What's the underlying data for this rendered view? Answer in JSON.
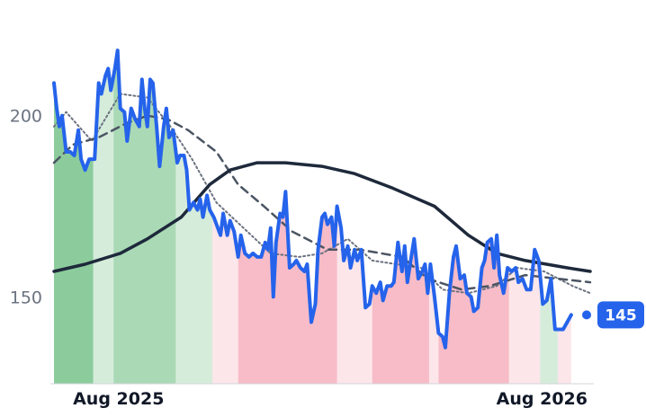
{
  "chart_data": {
    "type": "line",
    "title": "",
    "xlabel": "",
    "ylabel": "",
    "x_range": [
      "2025-07-18",
      "2026-08-18"
    ],
    "ylim": [
      126,
      222
    ],
    "y_ticks": [
      150,
      200
    ],
    "x_ticks": [
      {
        "date": "2025-08-01",
        "label": "Aug 2025"
      },
      {
        "date": "2026-08-01",
        "label": "Aug 2026"
      }
    ],
    "grid": false,
    "legend": "none",
    "last_value_label": "145",
    "colors": {
      "price": "#2563eb",
      "ma_long": "#1e293b",
      "ma_mid": "#4b5563",
      "ma_short": "#6b7280",
      "up_band": "#86c997",
      "down_band": "#f7b8c4"
    },
    "series": [
      {
        "key": "price",
        "points": [
          [
            "2025-07-18",
            209
          ],
          [
            "2025-07-20",
            202
          ],
          [
            "2025-07-22",
            197
          ],
          [
            "2025-07-24",
            200
          ],
          [
            "2025-07-27",
            190
          ],
          [
            "2025-07-30",
            190
          ],
          [
            "2025-08-02",
            189
          ],
          [
            "2025-08-05",
            196
          ],
          [
            "2025-08-07",
            188
          ],
          [
            "2025-08-10",
            185
          ],
          [
            "2025-08-13",
            188
          ],
          [
            "2025-08-17",
            188
          ],
          [
            "2025-08-20",
            209
          ],
          [
            "2025-08-22",
            206
          ],
          [
            "2025-08-25",
            211
          ],
          [
            "2025-08-27",
            213
          ],
          [
            "2025-08-29",
            207
          ],
          [
            "2025-09-01",
            213
          ],
          [
            "2025-09-03",
            218
          ],
          [
            "2025-09-05",
            202
          ],
          [
            "2025-09-08",
            201
          ],
          [
            "2025-09-10",
            193
          ],
          [
            "2025-09-13",
            202
          ],
          [
            "2025-09-16",
            199
          ],
          [
            "2025-09-19",
            197
          ],
          [
            "2025-09-21",
            210
          ],
          [
            "2025-09-23",
            202
          ],
          [
            "2025-09-25",
            197
          ],
          [
            "2025-09-27",
            210
          ],
          [
            "2025-09-29",
            209
          ],
          [
            "2025-10-02",
            196
          ],
          [
            "2025-10-04",
            186
          ],
          [
            "2025-10-07",
            197
          ],
          [
            "2025-10-09",
            202
          ],
          [
            "2025-10-11",
            194
          ],
          [
            "2025-10-14",
            196
          ],
          [
            "2025-10-17",
            187
          ],
          [
            "2025-10-19",
            189
          ],
          [
            "2025-10-22",
            189
          ],
          [
            "2025-10-24",
            185
          ],
          [
            "2025-10-26",
            174
          ],
          [
            "2025-10-29",
            176
          ],
          [
            "2025-11-01",
            174
          ],
          [
            "2025-11-03",
            177
          ],
          [
            "2025-11-05",
            172
          ],
          [
            "2025-11-08",
            178
          ],
          [
            "2025-11-10",
            174
          ],
          [
            "2025-11-13",
            172
          ],
          [
            "2025-11-16",
            169
          ],
          [
            "2025-11-18",
            167
          ],
          [
            "2025-11-20",
            173
          ],
          [
            "2025-11-23",
            167
          ],
          [
            "2025-11-25",
            171
          ],
          [
            "2025-11-28",
            168
          ],
          [
            "2025-12-01",
            161
          ],
          [
            "2025-12-03",
            167
          ],
          [
            "2025-12-06",
            162
          ],
          [
            "2025-12-09",
            161
          ],
          [
            "2025-12-12",
            162
          ],
          [
            "2025-12-15",
            161
          ],
          [
            "2025-12-18",
            161
          ],
          [
            "2025-12-21",
            165
          ],
          [
            "2025-12-23",
            163
          ],
          [
            "2025-12-25",
            169
          ],
          [
            "2025-12-27",
            150
          ],
          [
            "2025-12-29",
            165
          ],
          [
            "2026-01-01",
            173
          ],
          [
            "2026-01-03",
            172
          ],
          [
            "2026-01-05",
            179
          ],
          [
            "2026-01-08",
            158
          ],
          [
            "2026-01-11",
            159
          ],
          [
            "2026-01-13",
            160
          ],
          [
            "2026-01-16",
            158
          ],
          [
            "2026-01-19",
            157
          ],
          [
            "2026-01-21",
            159
          ],
          [
            "2026-01-24",
            143
          ],
          [
            "2026-01-27",
            148
          ],
          [
            "2026-01-29",
            163
          ],
          [
            "2026-02-01",
            172
          ],
          [
            "2026-02-03",
            173
          ],
          [
            "2026-02-05",
            170
          ],
          [
            "2026-02-08",
            172
          ],
          [
            "2026-02-10",
            164
          ],
          [
            "2026-02-12",
            175
          ],
          [
            "2026-02-15",
            169
          ],
          [
            "2026-02-17",
            160
          ],
          [
            "2026-02-20",
            164
          ],
          [
            "2026-02-22",
            158
          ],
          [
            "2026-02-25",
            163
          ],
          [
            "2026-02-27",
            160
          ],
          [
            "2026-03-02",
            163
          ],
          [
            "2026-03-05",
            147
          ],
          [
            "2026-03-08",
            148
          ],
          [
            "2026-03-10",
            153
          ],
          [
            "2026-03-13",
            151
          ],
          [
            "2026-03-16",
            154
          ],
          [
            "2026-03-18",
            149
          ],
          [
            "2026-03-21",
            153
          ],
          [
            "2026-03-24",
            153
          ],
          [
            "2026-03-26",
            154
          ],
          [
            "2026-03-29",
            165
          ],
          [
            "2026-04-01",
            157
          ],
          [
            "2026-04-03",
            164
          ],
          [
            "2026-04-05",
            154
          ],
          [
            "2026-04-07",
            159
          ],
          [
            "2026-04-10",
            166
          ],
          [
            "2026-04-13",
            155
          ],
          [
            "2026-04-16",
            157
          ],
          [
            "2026-04-18",
            159
          ],
          [
            "2026-04-20",
            151
          ],
          [
            "2026-04-22",
            159
          ],
          [
            "2026-04-25",
            150
          ],
          [
            "2026-04-28",
            140
          ],
          [
            "2026-05-01",
            139
          ],
          [
            "2026-05-03",
            136
          ],
          [
            "2026-05-06",
            151
          ],
          [
            "2026-05-09",
            161
          ],
          [
            "2026-05-11",
            164
          ],
          [
            "2026-05-14",
            155
          ],
          [
            "2026-05-17",
            156
          ],
          [
            "2026-05-19",
            151
          ],
          [
            "2026-05-22",
            150
          ],
          [
            "2026-05-24",
            146
          ],
          [
            "2026-05-27",
            147
          ],
          [
            "2026-05-30",
            158
          ],
          [
            "2026-06-01",
            160
          ],
          [
            "2026-06-03",
            165
          ],
          [
            "2026-06-06",
            166
          ],
          [
            "2026-06-08",
            158
          ],
          [
            "2026-06-10",
            167
          ],
          [
            "2026-06-12",
            156
          ],
          [
            "2026-06-15",
            151
          ],
          [
            "2026-06-18",
            158
          ],
          [
            "2026-06-21",
            157
          ],
          [
            "2026-06-24",
            158
          ],
          [
            "2026-06-26",
            154
          ],
          [
            "2026-06-29",
            155
          ],
          [
            "2026-07-02",
            152
          ],
          [
            "2026-07-05",
            152
          ],
          [
            "2026-07-08",
            163
          ],
          [
            "2026-07-11",
            160
          ],
          [
            "2026-07-14",
            148
          ],
          [
            "2026-07-17",
            149
          ],
          [
            "2026-07-20",
            155
          ],
          [
            "2026-07-23",
            141
          ],
          [
            "2026-07-26",
            141
          ],
          [
            "2026-07-29",
            141
          ],
          [
            "2026-08-01",
            143
          ],
          [
            "2026-08-04",
            145
          ]
        ]
      },
      {
        "key": "ma_long",
        "points": [
          [
            "2025-07-18",
            157
          ],
          [
            "2025-08-10",
            159
          ],
          [
            "2025-09-05",
            162
          ],
          [
            "2025-09-25",
            166
          ],
          [
            "2025-10-20",
            172
          ],
          [
            "2025-11-10",
            181
          ],
          [
            "2025-11-25",
            185
          ],
          [
            "2025-12-15",
            187
          ],
          [
            "2026-01-05",
            187
          ],
          [
            "2026-02-01",
            186
          ],
          [
            "2026-02-25",
            184
          ],
          [
            "2026-03-25",
            180
          ],
          [
            "2026-04-25",
            175
          ],
          [
            "2026-05-20",
            167
          ],
          [
            "2026-06-10",
            162
          ],
          [
            "2026-07-01",
            160
          ],
          [
            "2026-08-01",
            158
          ],
          [
            "2026-08-18",
            157
          ]
        ]
      },
      {
        "key": "ma_mid",
        "points": [
          [
            "2025-07-18",
            187
          ],
          [
            "2025-08-01",
            192
          ],
          [
            "2025-08-20",
            194
          ],
          [
            "2025-09-10",
            198
          ],
          [
            "2025-09-25",
            200
          ],
          [
            "2025-10-10",
            199
          ],
          [
            "2025-10-25",
            196
          ],
          [
            "2025-11-15",
            190
          ],
          [
            "2025-12-01",
            181
          ],
          [
            "2025-12-20",
            175
          ],
          [
            "2026-01-10",
            168
          ],
          [
            "2026-02-05",
            163
          ],
          [
            "2026-03-01",
            163
          ],
          [
            "2026-04-01",
            161
          ],
          [
            "2026-04-20",
            155
          ],
          [
            "2026-05-15",
            152
          ],
          [
            "2026-06-05",
            153
          ],
          [
            "2026-07-01",
            156
          ],
          [
            "2026-07-25",
            155
          ],
          [
            "2026-08-18",
            154
          ]
        ]
      },
      {
        "key": "ma_short",
        "points": [
          [
            "2025-07-18",
            197
          ],
          [
            "2025-07-27",
            201
          ],
          [
            "2025-08-15",
            193
          ],
          [
            "2025-09-05",
            206
          ],
          [
            "2025-09-25",
            205
          ],
          [
            "2025-10-12",
            197
          ],
          [
            "2025-10-28",
            188
          ],
          [
            "2025-11-15",
            176
          ],
          [
            "2025-12-05",
            169
          ],
          [
            "2025-12-25",
            162
          ],
          [
            "2026-01-15",
            161
          ],
          [
            "2026-02-01",
            162
          ],
          [
            "2026-02-20",
            166
          ],
          [
            "2026-03-10",
            160
          ],
          [
            "2026-03-28",
            159
          ],
          [
            "2026-04-15",
            158
          ],
          [
            "2026-05-01",
            152
          ],
          [
            "2026-05-20",
            151
          ],
          [
            "2026-06-10",
            153
          ],
          [
            "2026-06-25",
            158
          ],
          [
            "2026-07-15",
            157
          ],
          [
            "2026-08-05",
            153
          ],
          [
            "2026-08-18",
            151
          ]
        ]
      }
    ],
    "bands": [
      {
        "start": "2025-07-18",
        "end": "2025-08-16",
        "trend": "up",
        "intensity": "strong"
      },
      {
        "start": "2025-08-16",
        "end": "2025-08-31",
        "trend": "up",
        "intensity": "light"
      },
      {
        "start": "2025-08-31",
        "end": "2025-10-16",
        "trend": "up",
        "intensity": "medium"
      },
      {
        "start": "2025-10-16",
        "end": "2025-11-12",
        "trend": "up",
        "intensity": "light"
      },
      {
        "start": "2025-11-12",
        "end": "2025-12-01",
        "trend": "down",
        "intensity": "light"
      },
      {
        "start": "2025-12-01",
        "end": "2026-02-12",
        "trend": "down",
        "intensity": "strong"
      },
      {
        "start": "2026-02-12",
        "end": "2026-03-10",
        "trend": "down",
        "intensity": "light"
      },
      {
        "start": "2026-03-10",
        "end": "2026-04-21",
        "trend": "down",
        "intensity": "strong"
      },
      {
        "start": "2026-04-21",
        "end": "2026-04-28",
        "trend": "down",
        "intensity": "light"
      },
      {
        "start": "2026-04-28",
        "end": "2026-06-19",
        "trend": "down",
        "intensity": "strong"
      },
      {
        "start": "2026-06-19",
        "end": "2026-07-12",
        "trend": "down",
        "intensity": "light"
      },
      {
        "start": "2026-07-12",
        "end": "2026-07-25",
        "trend": "up",
        "intensity": "light"
      },
      {
        "start": "2026-07-25",
        "end": "2026-08-05",
        "trend": "down",
        "intensity": "light"
      },
      {
        "start": "2026-08-05",
        "end": "2026-08-18",
        "trend": "down",
        "intensity": "strong"
      }
    ]
  }
}
